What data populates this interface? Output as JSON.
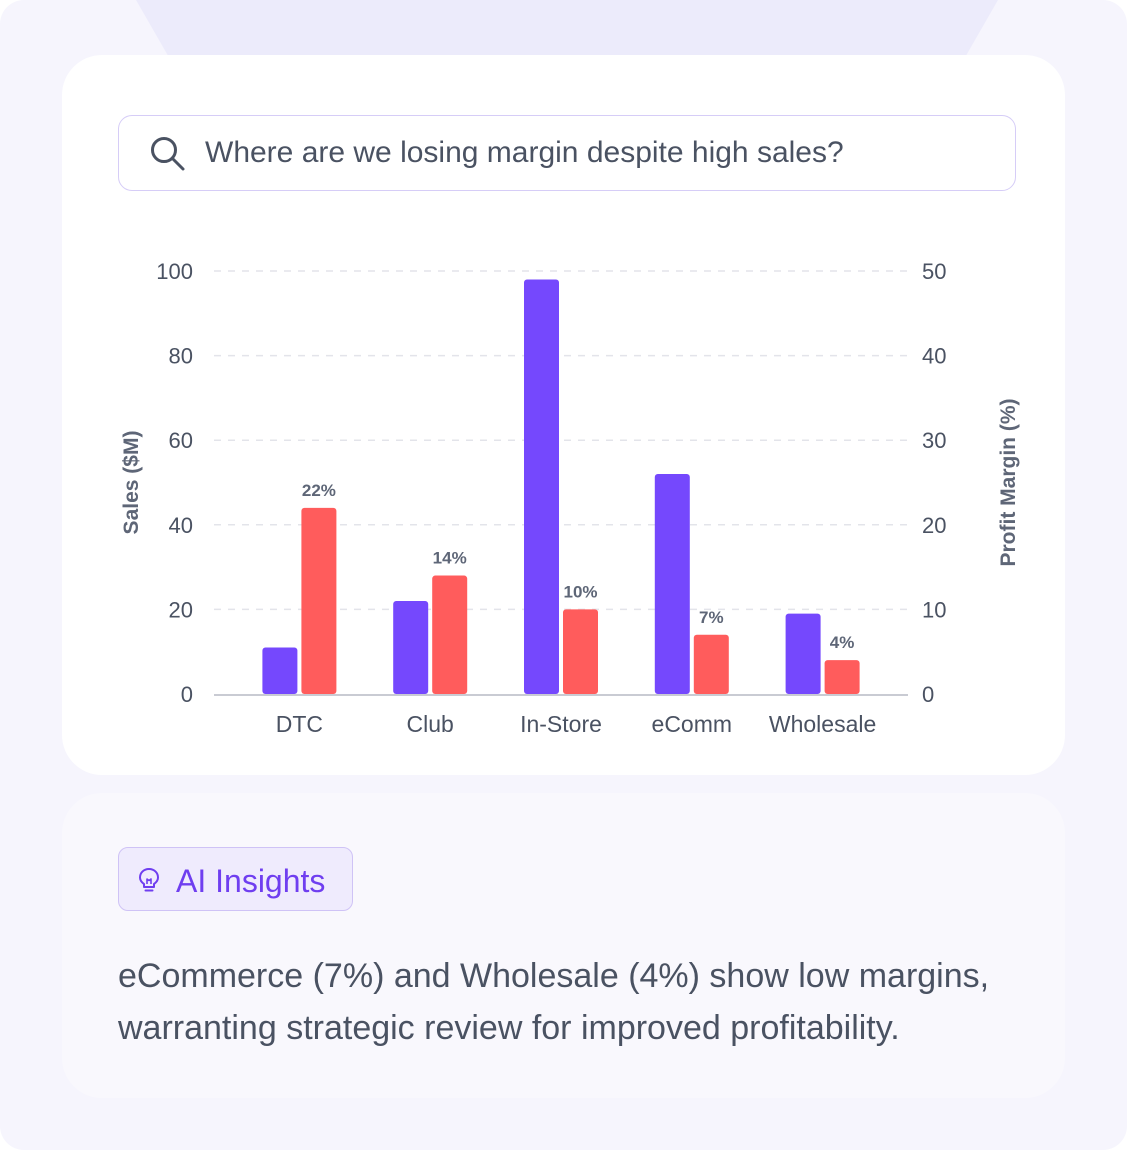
{
  "search": {
    "query": "Where are we losing margin despite high sales?",
    "icon": "search-icon"
  },
  "chart_data": {
    "type": "bar",
    "categories": [
      "DTC",
      "Club",
      "In-Store",
      "eComm",
      "Wholesale"
    ],
    "series": [
      {
        "axis": "left",
        "values": [
          11,
          22,
          98,
          52,
          19
        ],
        "color": "#7548fd"
      },
      {
        "axis": "right",
        "values": [
          22,
          14,
          10,
          7,
          4
        ],
        "labels": [
          "22%",
          "14%",
          "10%",
          "7%",
          "4%"
        ],
        "color": "#ff5c5c"
      }
    ],
    "ylabel": "Sales ($M)",
    "y2label": "Profit Margin (%)",
    "ylim": [
      0,
      100
    ],
    "y2lim": [
      0,
      50
    ],
    "yticks": [
      "0",
      "20",
      "40",
      "60",
      "80",
      "100"
    ],
    "y2ticks": [
      "0",
      "10",
      "20",
      "30",
      "40",
      "50"
    ],
    "grid": true
  },
  "insights": {
    "badge_label": "AI Insights",
    "badge_icon": "lightbulb-icon",
    "text": "eCommerce (7%) and Wholesale (4%) show low margins, warranting strategic review for improved profitability."
  }
}
